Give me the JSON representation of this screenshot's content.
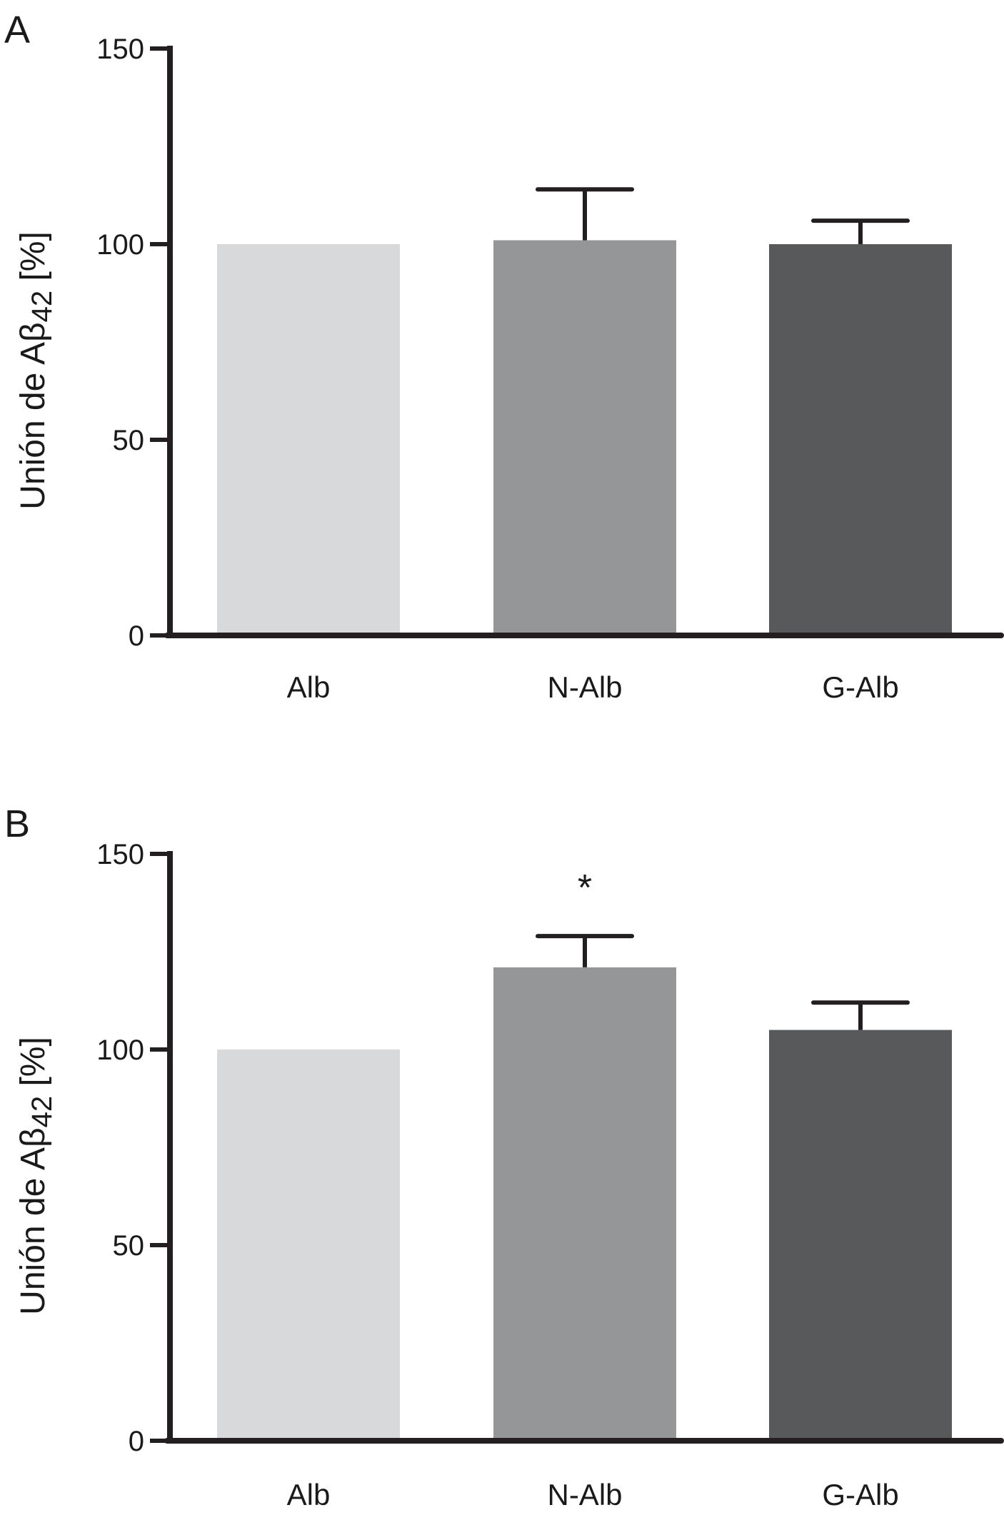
{
  "chart_data": [
    {
      "panel": "A",
      "type": "bar",
      "categories": [
        "Alb",
        "N-Alb",
        "G-Alb"
      ],
      "values": [
        100,
        101,
        100
      ],
      "errors": [
        0,
        13,
        6
      ],
      "colors": [
        "#d8d9da",
        "#959698",
        "#58595b"
      ],
      "ylabel": "Unión de Aβ42 [%]",
      "ylabel_main": "Unión de Aβ",
      "ylabel_sub": "42",
      "ylabel_tail": " [%]",
      "yticks": [
        0,
        50,
        100,
        150
      ],
      "ylim": [
        0,
        150
      ],
      "annotations": [],
      "grid": false
    },
    {
      "panel": "B",
      "type": "bar",
      "categories": [
        "Alb",
        "N-Alb",
        "G-Alb"
      ],
      "values": [
        100,
        121,
        105
      ],
      "errors": [
        0,
        8,
        7
      ],
      "colors": [
        "#d8d9da",
        "#959698",
        "#58595b"
      ],
      "ylabel": "Unión de Aβ42 [%]",
      "ylabel_main": "Unión de Aβ",
      "ylabel_sub": "42",
      "ylabel_tail": " [%]",
      "yticks": [
        0,
        50,
        100,
        150
      ],
      "ylim": [
        0,
        150
      ],
      "annotations": [
        {
          "category": "N-Alb",
          "text": "*"
        }
      ],
      "grid": false
    }
  ]
}
